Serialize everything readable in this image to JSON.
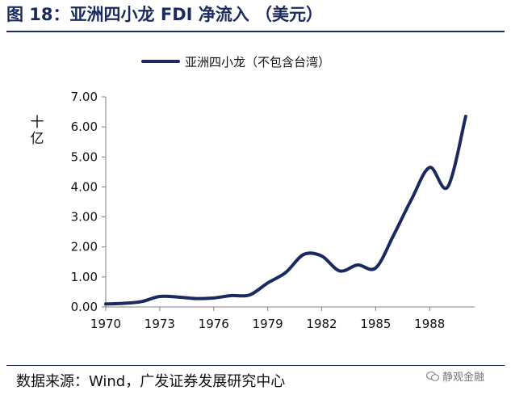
{
  "header": {
    "title": "图 18：亚洲四小龙 FDI 净流入 （美元）"
  },
  "legend": {
    "series_label": "亚洲四小龙（不包含台湾）"
  },
  "axis": {
    "unit_label": "十亿"
  },
  "footer": {
    "source": "数据来源：Wind，广发证券发展研究中心",
    "watermark": "静观金融"
  },
  "colors": {
    "series": "#1a2a5e",
    "axis": "#7f7f7f"
  },
  "chart_data": {
    "type": "line",
    "title": "亚洲四小龙 FDI 净流入 （美元）",
    "ylabel": "十亿",
    "xlabel": "",
    "ylim": [
      0,
      7
    ],
    "xlim": [
      1970,
      1990.5
    ],
    "grid": false,
    "legend": "top-center",
    "y_ticks": [
      "0.00",
      "1.00",
      "2.00",
      "3.00",
      "4.00",
      "5.00",
      "6.00",
      "7.00"
    ],
    "x_ticks": [
      "1970",
      "1973",
      "1976",
      "1979",
      "1982",
      "1985",
      "1988"
    ],
    "series": [
      {
        "name": "亚洲四小龙（不包含台湾）",
        "x": [
          1970,
          1971,
          1972,
          1973,
          1974,
          1975,
          1976,
          1977,
          1978,
          1979,
          1980,
          1981,
          1982,
          1983,
          1984,
          1985,
          1986,
          1987,
          1988,
          1989,
          1990
        ],
        "values": [
          0.1,
          0.12,
          0.18,
          0.35,
          0.33,
          0.28,
          0.3,
          0.38,
          0.4,
          0.8,
          1.15,
          1.75,
          1.7,
          1.2,
          1.4,
          1.3,
          2.4,
          3.6,
          4.65,
          4.0,
          6.35
        ]
      }
    ]
  }
}
